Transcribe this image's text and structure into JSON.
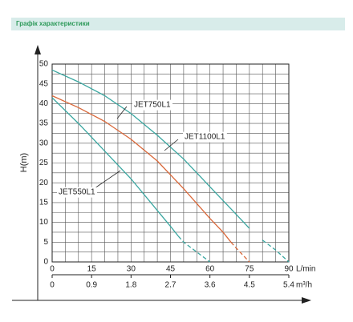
{
  "chart_data": {
    "type": "line",
    "title": "Графік характеристики",
    "ylabel": "H(m)",
    "xunit": "L/min",
    "x2unit": "m³/h",
    "xlim": [
      0,
      90
    ],
    "xticks": [
      0,
      15,
      30,
      45,
      60,
      75,
      90
    ],
    "ylim": [
      0,
      50
    ],
    "yticks": [
      0,
      5,
      10,
      15,
      20,
      25,
      30,
      35,
      40,
      45,
      50
    ],
    "x2lim": [
      0,
      5.4
    ],
    "x2ticks": [
      0,
      0.9,
      1.8,
      2.7,
      3.6,
      4.5,
      5.4
    ],
    "grid": true,
    "grid_step": {
      "x": 5,
      "y": 2.5
    },
    "series": [
      {
        "name": "JET750L1",
        "color": "#3aa6a0",
        "dashed_from": 77,
        "x": [
          0,
          10,
          20,
          30,
          40,
          50,
          60,
          70,
          75,
          80,
          85,
          90
        ],
        "values": [
          48.5,
          45.5,
          42,
          37.5,
          32,
          26,
          19,
          12,
          8.5,
          5.5,
          3,
          0
        ]
      },
      {
        "name": "JET1100L1",
        "color": "#d9683a",
        "dashed_from": 68,
        "x": [
          0,
          10,
          20,
          30,
          40,
          50,
          60,
          65,
          68,
          70,
          75
        ],
        "values": [
          42,
          39,
          35.5,
          31,
          25.5,
          18.5,
          11,
          7.5,
          5,
          3.5,
          0
        ]
      },
      {
        "name": "JET550L1",
        "color": "#3aa6a0",
        "dashed_from": 48,
        "x": [
          0,
          10,
          20,
          30,
          40,
          45,
          48,
          50,
          55,
          60
        ],
        "values": [
          41.5,
          35,
          28,
          21,
          13,
          9,
          6.5,
          5,
          2.5,
          0
        ]
      }
    ]
  }
}
